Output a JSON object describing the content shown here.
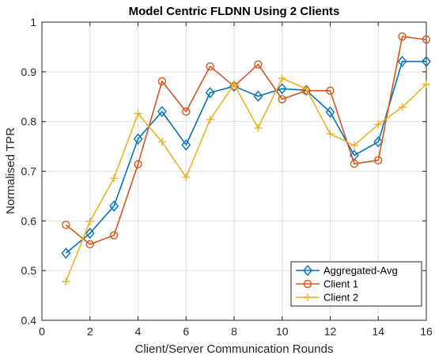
{
  "chart_data": {
    "type": "line",
    "title": "Model Centric FLDNN Using 2 Clients",
    "xlabel": "Client/Server Communication Rounds",
    "ylabel": "Normalised TPR",
    "xlim": [
      0,
      16
    ],
    "ylim": [
      0.4,
      1.0
    ],
    "xticks": [
      0,
      2,
      4,
      6,
      8,
      10,
      12,
      14,
      16
    ],
    "yticks": [
      0.4,
      0.5,
      0.6,
      0.7,
      0.8,
      0.9,
      1.0
    ],
    "ytick_labels": [
      "0.4",
      "0.5",
      "0.6",
      "0.7",
      "0.8",
      "0.9",
      "1"
    ],
    "grid": true,
    "legend_position": "bottom-right",
    "x": [
      1,
      2,
      3,
      4,
      5,
      6,
      7,
      8,
      9,
      10,
      11,
      12,
      13,
      14,
      15,
      16
    ],
    "series": [
      {
        "name": "Aggregated-Avg",
        "color": "#0072BD",
        "marker": "diamond",
        "values": [
          0.535,
          0.575,
          0.63,
          0.765,
          0.82,
          0.753,
          0.858,
          0.871,
          0.851,
          0.866,
          0.863,
          0.819,
          0.732,
          0.759,
          0.921,
          0.921
        ]
      },
      {
        "name": "Client 1",
        "color": "#D95319",
        "marker": "circle",
        "values": [
          0.592,
          0.553,
          0.571,
          0.714,
          0.881,
          0.82,
          0.911,
          0.871,
          0.915,
          0.845,
          0.862,
          0.862,
          0.715,
          0.722,
          0.971,
          0.965
        ]
      },
      {
        "name": "Client 2",
        "color": "#EDB120",
        "marker": "plus",
        "values": [
          0.478,
          0.599,
          0.686,
          0.816,
          0.759,
          0.688,
          0.804,
          0.875,
          0.787,
          0.887,
          0.866,
          0.775,
          0.752,
          0.794,
          0.829,
          0.875
        ]
      }
    ]
  }
}
